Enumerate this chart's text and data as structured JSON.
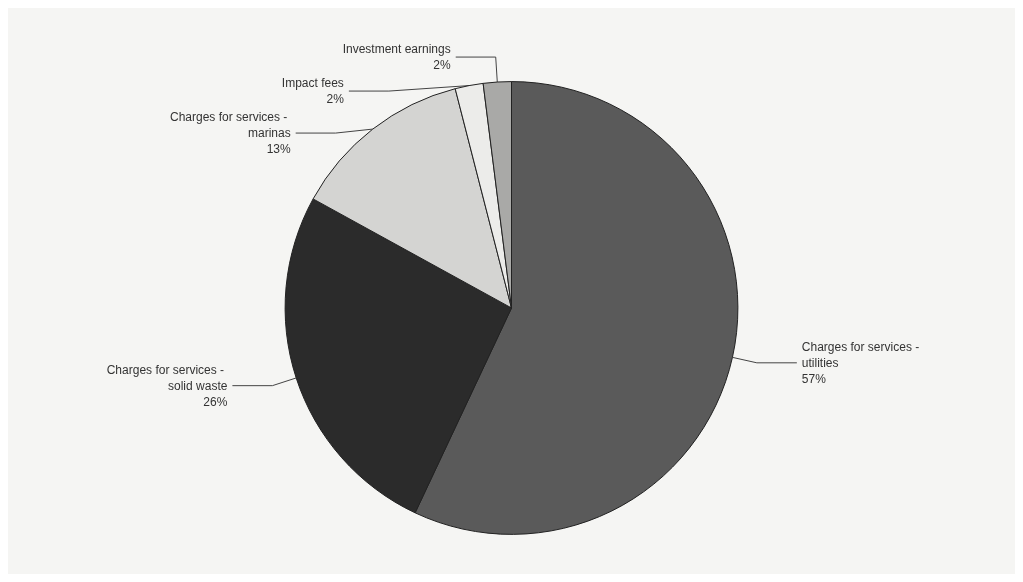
{
  "chart_data": {
    "type": "pie",
    "categories": [
      "Charges for services - utilities",
      "Charges for services - solid waste",
      "Charges for services - marinas",
      "Impact fees",
      "Investment earnings"
    ],
    "values": [
      57,
      26,
      13,
      2,
      2
    ],
    "colors": [
      "#5a5a5a",
      "#2b2b2b",
      "#d4d4d2",
      "#ececea",
      "#a9a9a7"
    ],
    "value_labels": [
      "57%",
      "26%",
      "13%",
      "2%",
      "2%"
    ],
    "legend": false
  }
}
